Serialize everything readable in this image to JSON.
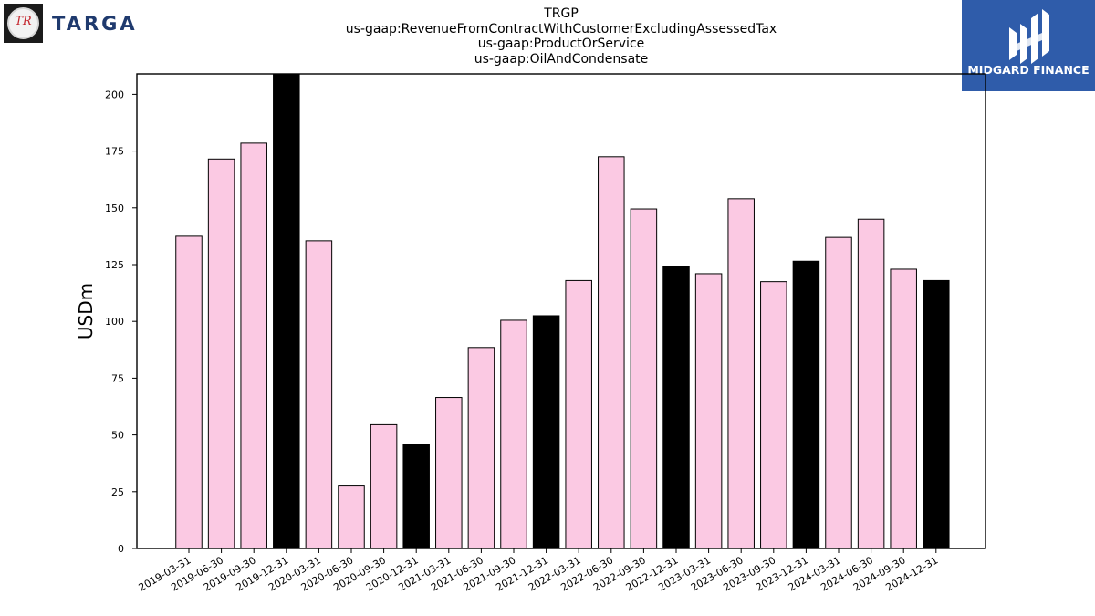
{
  "header": {
    "title_lines": [
      "TRGP",
      "us-gaap:RevenueFromContractWithCustomerExcludingAssessedTax",
      "us-gaap:ProductOrService",
      "us-gaap:OilAndCondensate"
    ]
  },
  "logos": {
    "left": {
      "badge_text": "TR",
      "wordmark": "TARGA"
    },
    "right": {
      "text": "MIDGARD FINANCE"
    }
  },
  "colors": {
    "quarter_bar": "#fbc9e3",
    "year_end_bar": "#000000",
    "brand_right": "#2f5caa",
    "brand_left_text": "#1f3a6e"
  },
  "chart_data": {
    "type": "bar",
    "title": "TRGP us-gaap:RevenueFromContractWithCustomerExcludingAssessedTax us-gaap:ProductOrService us-gaap:OilAndCondensate",
    "xlabel": "",
    "ylabel": "USDm",
    "ylim": [
      0,
      209
    ],
    "yticks": [
      0,
      25,
      50,
      75,
      100,
      125,
      150,
      175,
      200
    ],
    "grid": false,
    "categories": [
      "2019-03-31",
      "2019-06-30",
      "2019-09-30",
      "2019-12-31",
      "2020-03-31",
      "2020-06-30",
      "2020-09-30",
      "2020-12-31",
      "2021-03-31",
      "2021-06-30",
      "2021-09-30",
      "2021-12-31",
      "2022-03-31",
      "2022-06-30",
      "2022-09-30",
      "2022-12-31",
      "2023-03-31",
      "2023-06-30",
      "2023-09-30",
      "2023-12-31",
      "2024-03-31",
      "2024-06-30",
      "2024-09-30",
      "2024-12-31"
    ],
    "values": [
      137.5,
      171.5,
      178.5,
      209,
      135.5,
      27.5,
      54.5,
      46,
      66.5,
      88.5,
      100.5,
      102.5,
      118,
      172.5,
      149.5,
      124,
      121,
      154,
      117.5,
      126.5,
      137,
      145,
      123,
      118
    ],
    "highlight": [
      false,
      false,
      false,
      true,
      false,
      false,
      false,
      true,
      false,
      false,
      false,
      true,
      false,
      false,
      false,
      true,
      false,
      false,
      false,
      true,
      false,
      false,
      false,
      true
    ]
  }
}
